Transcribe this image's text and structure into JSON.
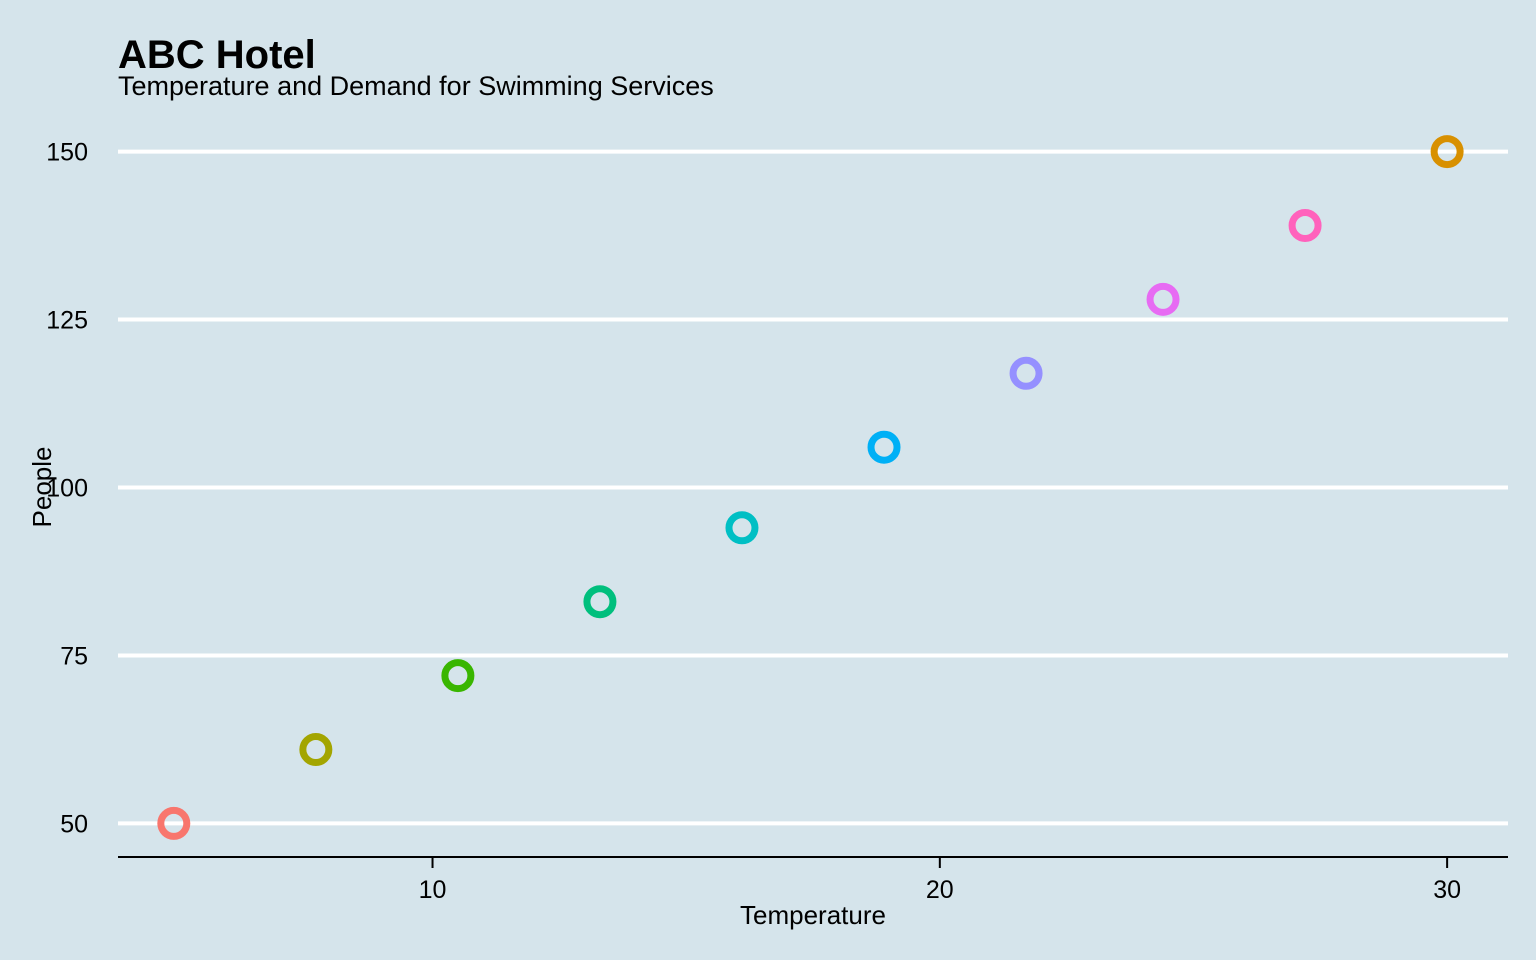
{
  "chart_data": {
    "type": "scatter",
    "title": "ABC Hotel",
    "subtitle": "Temperature and Demand for Swimming Services",
    "xlabel": "Temperature",
    "ylabel": "People",
    "xlim": [
      3.8,
      31.2
    ],
    "ylim": [
      45,
      155
    ],
    "xticks": [
      10,
      20,
      30
    ],
    "yticks": [
      50,
      75,
      100,
      125,
      150
    ],
    "grid": "horizontal-major",
    "legend": "none",
    "points": [
      {
        "x": 4.9,
        "y": 50,
        "color": "#F8766D"
      },
      {
        "x": 7.7,
        "y": 61,
        "color": "#A3A500"
      },
      {
        "x": 10.5,
        "y": 72,
        "color": "#39B600"
      },
      {
        "x": 13.3,
        "y": 83,
        "color": "#00BF7D"
      },
      {
        "x": 16.1,
        "y": 94,
        "color": "#00BFC4"
      },
      {
        "x": 18.9,
        "y": 106,
        "color": "#00B0F6"
      },
      {
        "x": 21.7,
        "y": 117,
        "color": "#9590FF"
      },
      {
        "x": 24.4,
        "y": 128,
        "color": "#E76BF3"
      },
      {
        "x": 27.2,
        "y": 139,
        "color": "#FF62BC"
      },
      {
        "x": 30.0,
        "y": 150,
        "color": "#D89000"
      }
    ]
  }
}
